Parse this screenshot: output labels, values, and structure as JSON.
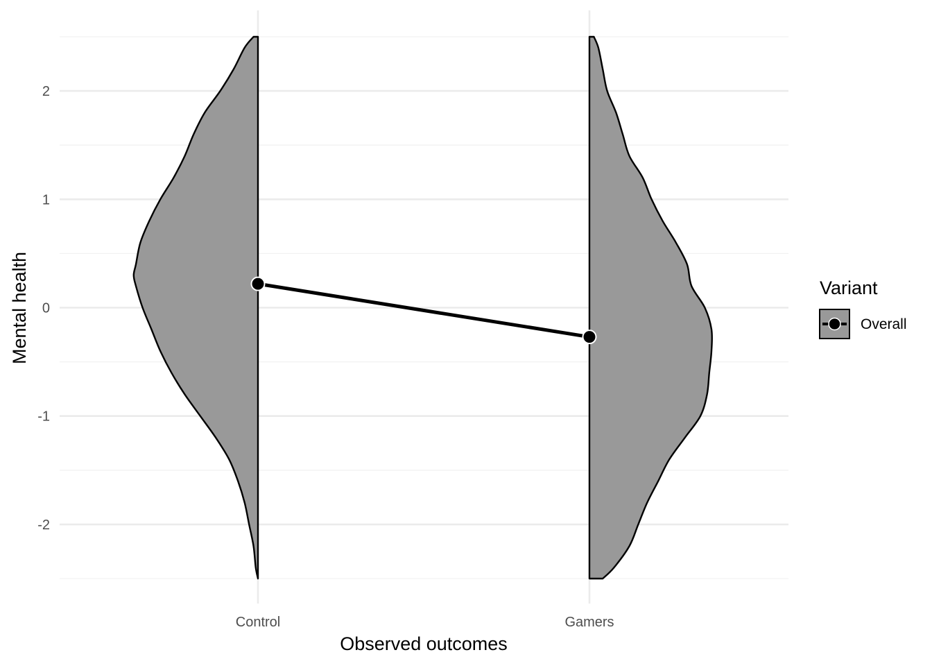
{
  "chart_data": {
    "type": "violin",
    "xlabel": "Observed outcomes",
    "ylabel": "Mental health",
    "categories": [
      "Control",
      "Gamers"
    ],
    "ylim": [
      -2.5,
      2.5
    ],
    "y_ticks": [
      -2,
      -1,
      0,
      1,
      2
    ],
    "y_tick_labels": [
      "-2",
      "-1",
      "0",
      "1",
      "2"
    ],
    "grid": true,
    "colors": {
      "violin_fill": "#999999",
      "outline": "#000000",
      "mean_line": "#000000",
      "grid_major": "#ebebeb",
      "grid_minor": "#f2f2f2"
    },
    "densities": [
      {
        "category": "Control",
        "side": "left",
        "y": [
          2.5,
          2.4,
          2.2,
          2.0,
          1.8,
          1.6,
          1.4,
          1.2,
          1.0,
          0.8,
          0.6,
          0.4,
          0.3,
          0.2,
          0.0,
          -0.2,
          -0.4,
          -0.6,
          -0.8,
          -1.0,
          -1.2,
          -1.4,
          -1.6,
          -1.8,
          -2.0,
          -2.2,
          -2.4,
          -2.5
        ],
        "width": [
          0.02,
          0.06,
          0.11,
          0.17,
          0.24,
          0.29,
          0.33,
          0.38,
          0.44,
          0.49,
          0.53,
          0.55,
          0.56,
          0.55,
          0.52,
          0.48,
          0.44,
          0.39,
          0.33,
          0.26,
          0.19,
          0.13,
          0.09,
          0.06,
          0.04,
          0.02,
          0.01,
          0.0
        ]
      },
      {
        "category": "Gamers",
        "side": "right",
        "y": [
          2.5,
          2.4,
          2.2,
          2.0,
          1.8,
          1.6,
          1.4,
          1.2,
          1.0,
          0.8,
          0.6,
          0.4,
          0.2,
          0.0,
          -0.2,
          -0.4,
          -0.6,
          -0.8,
          -1.0,
          -1.2,
          -1.4,
          -1.6,
          -1.8,
          -2.0,
          -2.2,
          -2.4,
          -2.5
        ],
        "width": [
          0.02,
          0.04,
          0.06,
          0.08,
          0.12,
          0.15,
          0.18,
          0.24,
          0.28,
          0.33,
          0.39,
          0.44,
          0.46,
          0.52,
          0.55,
          0.55,
          0.54,
          0.53,
          0.5,
          0.43,
          0.36,
          0.31,
          0.26,
          0.22,
          0.18,
          0.11,
          0.06
        ]
      }
    ],
    "series": [
      {
        "name": "Overall",
        "values": [
          0.22,
          -0.27
        ]
      }
    ],
    "legend": {
      "title": "Variant",
      "position": "right",
      "entries": [
        "Overall"
      ]
    }
  }
}
